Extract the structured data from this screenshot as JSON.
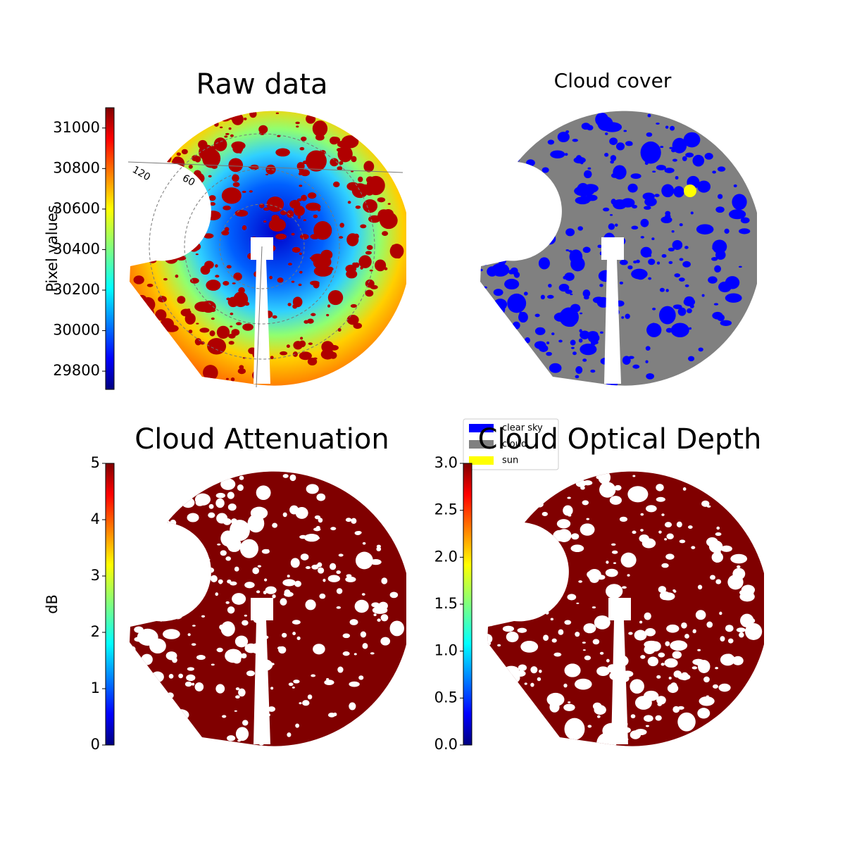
{
  "chart_data": [
    {
      "type": "sky-image",
      "title": "Raw data",
      "colormap": "jet",
      "colorbar_label": "Pixel values",
      "clim": [
        29710,
        31100
      ],
      "cticks": [
        29800,
        30000,
        30200,
        30400,
        30600,
        30800,
        31000
      ],
      "polar_labels": [
        "120",
        "60"
      ]
    },
    {
      "type": "sky-classes",
      "title": "Cloud cover",
      "legend": [
        {
          "name": "clear sky",
          "color": "#0000ff"
        },
        {
          "name": "cloud",
          "color": "#808080"
        },
        {
          "name": "sun",
          "color": "#ffff00"
        }
      ]
    },
    {
      "type": "sky-image",
      "title": "Cloud Attenuation",
      "colormap": "jet",
      "colorbar_label": "dB",
      "clim": [
        0,
        5
      ],
      "cticks": [
        0,
        1,
        2,
        3,
        4,
        5
      ],
      "fill": "#800000"
    },
    {
      "type": "sky-image",
      "title": "Cloud Optical Depth",
      "colormap": "jet",
      "clim": [
        0,
        3
      ],
      "cticks": [
        {
          "value": 0,
          "label": "0.0"
        },
        {
          "value": 0.5,
          "label": "0.5"
        },
        {
          "value": 1,
          "label": "1.0"
        },
        {
          "value": 1.5,
          "label": "1.5"
        },
        {
          "value": 2,
          "label": "2.0"
        },
        {
          "value": 2.5,
          "label": "2.5"
        },
        {
          "value": 3,
          "label": "3.0"
        }
      ],
      "fill": "#800000"
    }
  ]
}
